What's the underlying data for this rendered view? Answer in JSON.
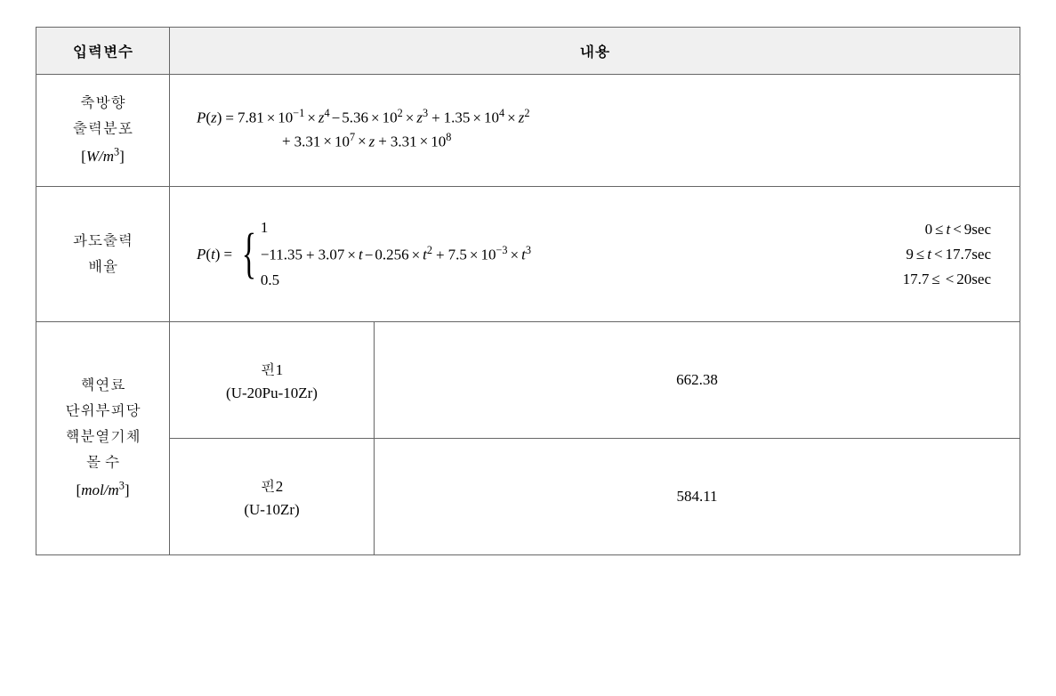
{
  "header": {
    "col1": "입력변수",
    "col2": "내용"
  },
  "row1": {
    "label_line1": "축방향",
    "label_line2": "출력분포",
    "unit_open": "[",
    "unit_var": "W/m",
    "unit_exp": "3",
    "unit_close": "]",
    "lhs_P": "P",
    "lhs_var": "z",
    "c1": "7.81",
    "e1": "−1",
    "p1": "4",
    "c2": "5.36",
    "e2": "2",
    "p2": "3",
    "c3": "1.35",
    "e3": "4",
    "p3": "2",
    "c4": "3.31",
    "e4": "7",
    "c5": "3.31",
    "e5": "8",
    "ten": "10",
    "eq": "=",
    "times": "×",
    "plus": "+",
    "minus": "−"
  },
  "row2": {
    "label_line1": "과도출력",
    "label_line2": "배율",
    "lhs_P": "P",
    "lhs_var": "t",
    "case1": "1",
    "case2_a": "−",
    "case2_b": "11.35",
    "case2_c": "3.07",
    "case2_d": "0.256",
    "case2_e": "7.5",
    "case2_ee": "−3",
    "case3": "0.5",
    "tvar": "t",
    "ten": "10",
    "cond1_a": "0",
    "cond1_b": "9",
    "cond1_unit": "sec",
    "cond2_a": "9",
    "cond2_b": "17.7",
    "cond2_unit": "sec",
    "cond3_a": "17.7",
    "cond3_b": "20",
    "cond3_unit": "sec",
    "le": "≤",
    "lt": "<",
    "eq": "=",
    "times": "×",
    "plus": "+",
    "minus": "−"
  },
  "row3": {
    "label_line1": "핵연료",
    "label_line2": "단위부피당",
    "label_line3": "핵분열기체",
    "label_line4": "몰 수",
    "unit_open": "[",
    "unit_var": "mol/m",
    "unit_exp": "3",
    "unit_close": "]",
    "pin1_name": "핀1",
    "pin1_comp": "(U-20Pu-10Zr)",
    "pin1_val": "662.38",
    "pin2_name": "핀2",
    "pin2_comp": "(U-10Zr)",
    "pin2_val": "584.11"
  },
  "style": {
    "header_bg": "#f0f0f0",
    "border_color": "#666666",
    "text_color": "#000000",
    "font_family": "Times New Roman, Batang, serif",
    "font_size_pt": 13
  }
}
